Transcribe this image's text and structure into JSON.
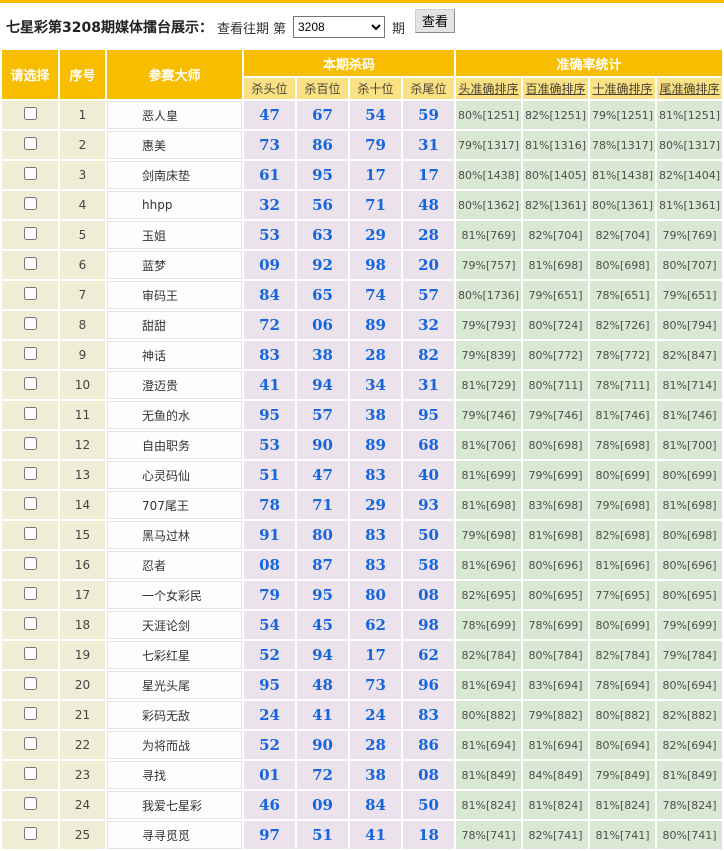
{
  "colors": {
    "header_gold": "#f8bd00",
    "subheader_yellow": "#fae183",
    "select_cell_beige": "#f0edd6",
    "kill_cell_mauve": "#ece2ec",
    "accuracy_cell_green": "#d9e8d2",
    "kill_number_blue": "#1565df"
  },
  "header": {
    "title": "七星彩第3208期媒体擂台展示：",
    "view_past": "查看往期",
    "di": "第",
    "period": "3208",
    "qi": "期",
    "view_button": "查看"
  },
  "table": {
    "headers": {
      "select": "请选择",
      "index": "序号",
      "master": "参赛大师",
      "kill_group": "本期杀码",
      "accuracy_group": "准确率统计",
      "kill_cols": [
        "杀头位",
        "杀百位",
        "杀十位",
        "杀尾位"
      ],
      "accuracy_cols": [
        "头准确排序",
        "百准确排序",
        "十准确排序",
        "尾准确排序"
      ]
    },
    "rows": [
      {
        "no": "1",
        "master": "恶人皇",
        "kills": [
          "47",
          "67",
          "54",
          "59"
        ],
        "accuracy": [
          "80%[1251]",
          "82%[1251]",
          "79%[1251]",
          "81%[1251]"
        ]
      },
      {
        "no": "2",
        "master": "惠美",
        "kills": [
          "73",
          "86",
          "79",
          "31"
        ],
        "accuracy": [
          "79%[1317]",
          "81%[1316]",
          "78%[1317]",
          "80%[1317]"
        ]
      },
      {
        "no": "3",
        "master": "剑南床垫",
        "kills": [
          "61",
          "95",
          "17",
          "17"
        ],
        "accuracy": [
          "80%[1438]",
          "80%[1405]",
          "81%[1438]",
          "82%[1404]"
        ]
      },
      {
        "no": "4",
        "master": "hhpp",
        "kills": [
          "32",
          "56",
          "71",
          "48"
        ],
        "accuracy": [
          "80%[1362]",
          "82%[1361]",
          "80%[1361]",
          "81%[1361]"
        ]
      },
      {
        "no": "5",
        "master": "玉姐",
        "kills": [
          "53",
          "63",
          "29",
          "28"
        ],
        "accuracy": [
          "81%[769]",
          "82%[704]",
          "82%[704]",
          "79%[769]"
        ]
      },
      {
        "no": "6",
        "master": "蓝梦",
        "kills": [
          "09",
          "92",
          "98",
          "20"
        ],
        "accuracy": [
          "79%[757]",
          "81%[698]",
          "80%[698]",
          "80%[707]"
        ]
      },
      {
        "no": "7",
        "master": "审码王",
        "kills": [
          "84",
          "65",
          "74",
          "57"
        ],
        "accuracy": [
          "80%[1736]",
          "79%[651]",
          "78%[651]",
          "79%[651]"
        ]
      },
      {
        "no": "8",
        "master": "甜甜",
        "kills": [
          "72",
          "06",
          "89",
          "32"
        ],
        "accuracy": [
          "79%[793]",
          "80%[724]",
          "82%[726]",
          "80%[794]"
        ]
      },
      {
        "no": "9",
        "master": "神话",
        "kills": [
          "83",
          "38",
          "28",
          "82"
        ],
        "accuracy": [
          "79%[839]",
          "80%[772]",
          "78%[772]",
          "82%[847]"
        ]
      },
      {
        "no": "10",
        "master": "澄迈贵",
        "kills": [
          "41",
          "94",
          "34",
          "31"
        ],
        "accuracy": [
          "81%[729]",
          "80%[711]",
          "78%[711]",
          "81%[714]"
        ]
      },
      {
        "no": "11",
        "master": "无鱼的水",
        "kills": [
          "95",
          "57",
          "38",
          "95"
        ],
        "accuracy": [
          "79%[746]",
          "79%[746]",
          "81%[746]",
          "81%[746]"
        ]
      },
      {
        "no": "12",
        "master": "自由职务",
        "kills": [
          "53",
          "90",
          "89",
          "68"
        ],
        "accuracy": [
          "81%[706]",
          "80%[698]",
          "78%[698]",
          "81%[700]"
        ]
      },
      {
        "no": "13",
        "master": "心灵码仙",
        "kills": [
          "51",
          "47",
          "83",
          "40"
        ],
        "accuracy": [
          "81%[699]",
          "79%[699]",
          "80%[699]",
          "80%[699]"
        ]
      },
      {
        "no": "14",
        "master": "707尾王",
        "kills": [
          "78",
          "71",
          "29",
          "93"
        ],
        "accuracy": [
          "81%[698]",
          "83%[698]",
          "79%[698]",
          "81%[698]"
        ]
      },
      {
        "no": "15",
        "master": "黑马过林",
        "kills": [
          "91",
          "80",
          "83",
          "50"
        ],
        "accuracy": [
          "79%[698]",
          "81%[698]",
          "82%[698]",
          "80%[698]"
        ]
      },
      {
        "no": "16",
        "master": "忍者",
        "kills": [
          "08",
          "87",
          "83",
          "58"
        ],
        "accuracy": [
          "81%[696]",
          "80%[696]",
          "81%[696]",
          "80%[696]"
        ]
      },
      {
        "no": "17",
        "master": "一个女彩民",
        "kills": [
          "79",
          "95",
          "80",
          "08"
        ],
        "accuracy": [
          "82%[695]",
          "80%[695]",
          "77%[695]",
          "80%[695]"
        ]
      },
      {
        "no": "18",
        "master": "天涯论剑",
        "kills": [
          "54",
          "45",
          "62",
          "98"
        ],
        "accuracy": [
          "78%[699]",
          "78%[699]",
          "80%[699]",
          "79%[699]"
        ]
      },
      {
        "no": "19",
        "master": "七彩红星",
        "kills": [
          "52",
          "94",
          "17",
          "62"
        ],
        "accuracy": [
          "82%[784]",
          "80%[784]",
          "82%[784]",
          "79%[784]"
        ]
      },
      {
        "no": "20",
        "master": "星光头尾",
        "kills": [
          "95",
          "48",
          "73",
          "96"
        ],
        "accuracy": [
          "81%[694]",
          "83%[694]",
          "78%[694]",
          "80%[694]"
        ]
      },
      {
        "no": "21",
        "master": "彩码无敌",
        "kills": [
          "24",
          "41",
          "24",
          "83"
        ],
        "accuracy": [
          "80%[882]",
          "79%[882]",
          "80%[882]",
          "82%[882]"
        ]
      },
      {
        "no": "22",
        "master": "为将而战",
        "kills": [
          "52",
          "90",
          "28",
          "86"
        ],
        "accuracy": [
          "81%[694]",
          "81%[694]",
          "80%[694]",
          "82%[694]"
        ]
      },
      {
        "no": "23",
        "master": "寻找",
        "kills": [
          "01",
          "72",
          "38",
          "08"
        ],
        "accuracy": [
          "81%[849]",
          "84%[849]",
          "79%[849]",
          "81%[849]"
        ]
      },
      {
        "no": "24",
        "master": "我爱七星彩",
        "kills": [
          "46",
          "09",
          "84",
          "50"
        ],
        "accuracy": [
          "81%[824]",
          "81%[824]",
          "81%[824]",
          "78%[824]"
        ]
      },
      {
        "no": "25",
        "master": "寻寻觅觅",
        "kills": [
          "97",
          "51",
          "41",
          "18"
        ],
        "accuracy": [
          "78%[741]",
          "82%[741]",
          "81%[741]",
          "80%[741]"
        ]
      }
    ]
  }
}
